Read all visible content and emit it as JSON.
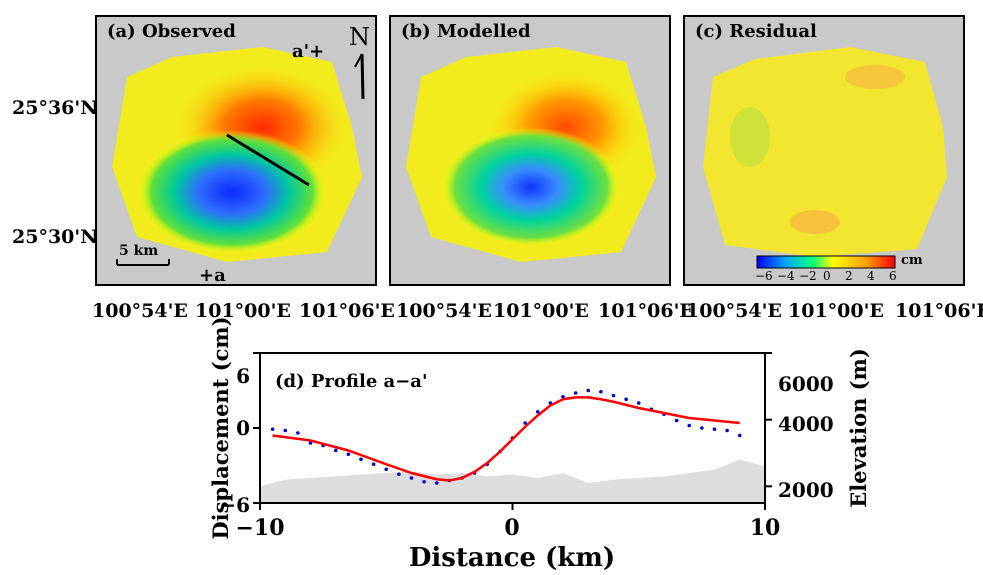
{
  "maps": {
    "panels": [
      {
        "label": "(a) Observed"
      },
      {
        "label": "(b) Modelled"
      },
      {
        "label": "(c) Residual"
      }
    ],
    "lat_labels": [
      "25°36'N",
      "25°30'N"
    ],
    "lon_labels": [
      "100°54'E",
      "101°00'E",
      "101°06'E"
    ],
    "north_label": "N",
    "profile_start": "+a",
    "profile_end": "a'+",
    "scalebar": "5 km",
    "colorbar": {
      "unit": "cm",
      "ticks": [
        "−6",
        "−4",
        "−2",
        "0",
        "2",
        "4",
        "6"
      ],
      "colors": [
        "#0000ff",
        "#00a0ff",
        "#00ff80",
        "#ffff00",
        "#ff9900",
        "#ff0000"
      ]
    }
  },
  "chart_data": {
    "type": "line",
    "title": "(d) Profile a−a'",
    "xlabel": "Distance (km)",
    "ylabel": "Displacement (cm)",
    "y2label": "Elevation (m)",
    "xlim": [
      -10,
      10
    ],
    "ylim": [
      -6,
      6
    ],
    "y2lim": [
      1500,
      6000
    ],
    "x_ticks": [
      "−10",
      "0",
      "10"
    ],
    "y_ticks": [
      "−6",
      "0",
      "6"
    ],
    "y2_ticks": [
      "2000",
      "4000",
      "6000"
    ],
    "colors": {
      "model": "#ff0000",
      "observed": "#0000dd",
      "elevation": "#dddddd"
    },
    "series": [
      {
        "key": "model",
        "x": [
          -9.5,
          -8,
          -6.5,
          -5,
          -4,
          -3,
          -2.5,
          -2,
          -1.5,
          -1,
          -0.5,
          0,
          0.5,
          1,
          1.5,
          2,
          2.5,
          3,
          3.5,
          4,
          5,
          6,
          7,
          8,
          9
        ],
        "y": [
          -0.6,
          -1.0,
          -1.8,
          -2.9,
          -3.6,
          -4.1,
          -4.2,
          -4.0,
          -3.5,
          -2.8,
          -1.9,
          -0.9,
          0.1,
          1.0,
          1.8,
          2.3,
          2.45,
          2.45,
          2.3,
          2.1,
          1.6,
          1.2,
          0.8,
          0.6,
          0.4
        ]
      },
      {
        "key": "observed",
        "x": [
          -9.5,
          -9,
          -8.5,
          -8,
          -7.5,
          -7,
          -6.5,
          -6,
          -5.5,
          -5,
          -4.5,
          -4,
          -3.5,
          -3,
          -2.5,
          -2,
          -1.5,
          -1,
          -0.5,
          0,
          0.5,
          1,
          1.5,
          2,
          2.5,
          3,
          3.5,
          4,
          4.5,
          5,
          5.5,
          6,
          6.5,
          7,
          7.5,
          8,
          8.5,
          9
        ],
        "y": [
          -0.1,
          -0.2,
          -0.4,
          -1.2,
          -1.4,
          -1.8,
          -2.1,
          -2.5,
          -2.9,
          -3.3,
          -3.7,
          -4.0,
          -4.3,
          -4.4,
          -4.2,
          -4.0,
          -3.6,
          -2.9,
          -1.9,
          -0.8,
          0.4,
          1.3,
          2.0,
          2.5,
          2.8,
          3.0,
          2.9,
          2.6,
          2.3,
          2.0,
          1.5,
          1.1,
          0.6,
          0.2,
          0.0,
          -0.1,
          -0.2,
          -0.6
        ]
      }
    ],
    "elevation": {
      "x": [
        -10,
        -9,
        -8,
        -7,
        -6,
        -5,
        -4,
        -3,
        -2,
        -1,
        0,
        1,
        2,
        3,
        4,
        5,
        6,
        7,
        8,
        9,
        10
      ],
      "y": [
        2000,
        2200,
        2250,
        2300,
        2350,
        2400,
        2450,
        2350,
        2400,
        2300,
        2350,
        2250,
        2400,
        2100,
        2200,
        2250,
        2300,
        2400,
        2500,
        2800,
        2600
      ]
    }
  }
}
